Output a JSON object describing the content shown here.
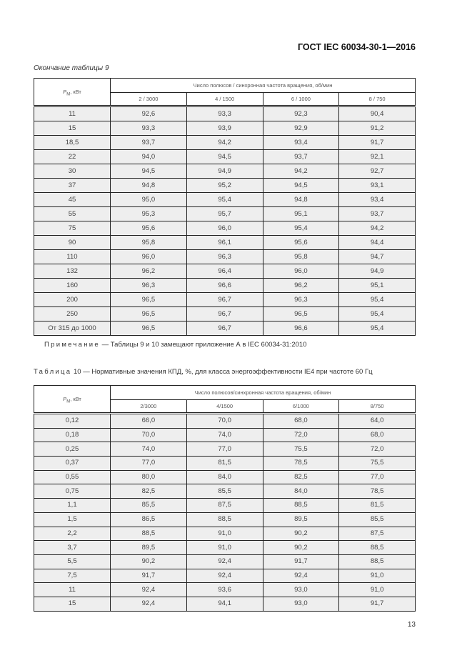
{
  "header": {
    "doc_id": "ГОСТ IEC 60034-30-1—2016"
  },
  "table9": {
    "caption": "Окончание таблицы 9",
    "p_symbol": "P",
    "p_sub": "M",
    "p_unit": ", кВт",
    "group_header": "Число полюсов / синхронная частота вращения, об/мин",
    "columns": [
      "2 / 3000",
      "4 / 1500",
      "6 / 1000",
      "8 / 750"
    ],
    "rows": [
      [
        "11",
        "92,6",
        "93,3",
        "92,3",
        "90,4"
      ],
      [
        "15",
        "93,3",
        "93,9",
        "92,9",
        "91,2"
      ],
      [
        "18,5",
        "93,7",
        "94,2",
        "93,4",
        "91,7"
      ],
      [
        "22",
        "94,0",
        "94,5",
        "93,7",
        "92,1"
      ],
      [
        "30",
        "94,5",
        "94,9",
        "94,2",
        "92,7"
      ],
      [
        "37",
        "94,8",
        "95,2",
        "94,5",
        "93,1"
      ],
      [
        "45",
        "95,0",
        "95,4",
        "94,8",
        "93,4"
      ],
      [
        "55",
        "95,3",
        "95,7",
        "95,1",
        "93,7"
      ],
      [
        "75",
        "95,6",
        "96,0",
        "95,4",
        "94,2"
      ],
      [
        "90",
        "95,8",
        "96,1",
        "95,6",
        "94,4"
      ],
      [
        "110",
        "96,0",
        "96,3",
        "95,8",
        "94,7"
      ],
      [
        "132",
        "96,2",
        "96,4",
        "96,0",
        "94,9"
      ],
      [
        "160",
        "96,3",
        "96,6",
        "96,2",
        "95,1"
      ],
      [
        "200",
        "96,5",
        "96,7",
        "96,3",
        "95,4"
      ],
      [
        "250",
        "96,5",
        "96,7",
        "96,5",
        "95,4"
      ],
      [
        "От 315 до 1000",
        "96,5",
        "96,7",
        "96,6",
        "95,4"
      ]
    ]
  },
  "note": {
    "label": "Примечание",
    "text": " — Таблицы 9 и 10 замещают приложение А в IEC 60034-31:2010"
  },
  "table10": {
    "title_label": "Таблица",
    "title_text": " 10 — Нормативные значения КПД, %, для класса энергоэффективности IE4 при частоте 60 Гц",
    "p_symbol": "P",
    "p_sub": "M",
    "p_unit": ", кВт",
    "group_header": "Число полюсов/синхронная частота вращения, об/мин",
    "columns": [
      "2/3000",
      "4/1500",
      "6/1000",
      "8/750"
    ],
    "rows": [
      [
        "0,12",
        "66,0",
        "70,0",
        "68,0",
        "64,0"
      ],
      [
        "0,18",
        "70,0",
        "74,0",
        "72,0",
        "68,0"
      ],
      [
        "0,25",
        "74,0",
        "77,0",
        "75,5",
        "72,0"
      ],
      [
        "0,37",
        "77,0",
        "81,5",
        "78,5",
        "75,5"
      ],
      [
        "0,55",
        "80,0",
        "84,0",
        "82,5",
        "77,0"
      ],
      [
        "0,75",
        "82,5",
        "85,5",
        "84,0",
        "78,5"
      ],
      [
        "1,1",
        "85,5",
        "87,5",
        "88,5",
        "81,5"
      ],
      [
        "1,5",
        "86,5",
        "88,5",
        "89,5",
        "85,5"
      ],
      [
        "2,2",
        "88,5",
        "91,0",
        "90,2",
        "87,5"
      ],
      [
        "3,7",
        "89,5",
        "91,0",
        "90,2",
        "88,5"
      ],
      [
        "5,5",
        "90,2",
        "92,4",
        "91,7",
        "88,5"
      ],
      [
        "7,5",
        "91,7",
        "92,4",
        "92,4",
        "91,0"
      ],
      [
        "11",
        "92,4",
        "93,6",
        "93,0",
        "91,0"
      ],
      [
        "15",
        "92,4",
        "94,1",
        "93,0",
        "91,7"
      ]
    ]
  },
  "page_number": "13"
}
